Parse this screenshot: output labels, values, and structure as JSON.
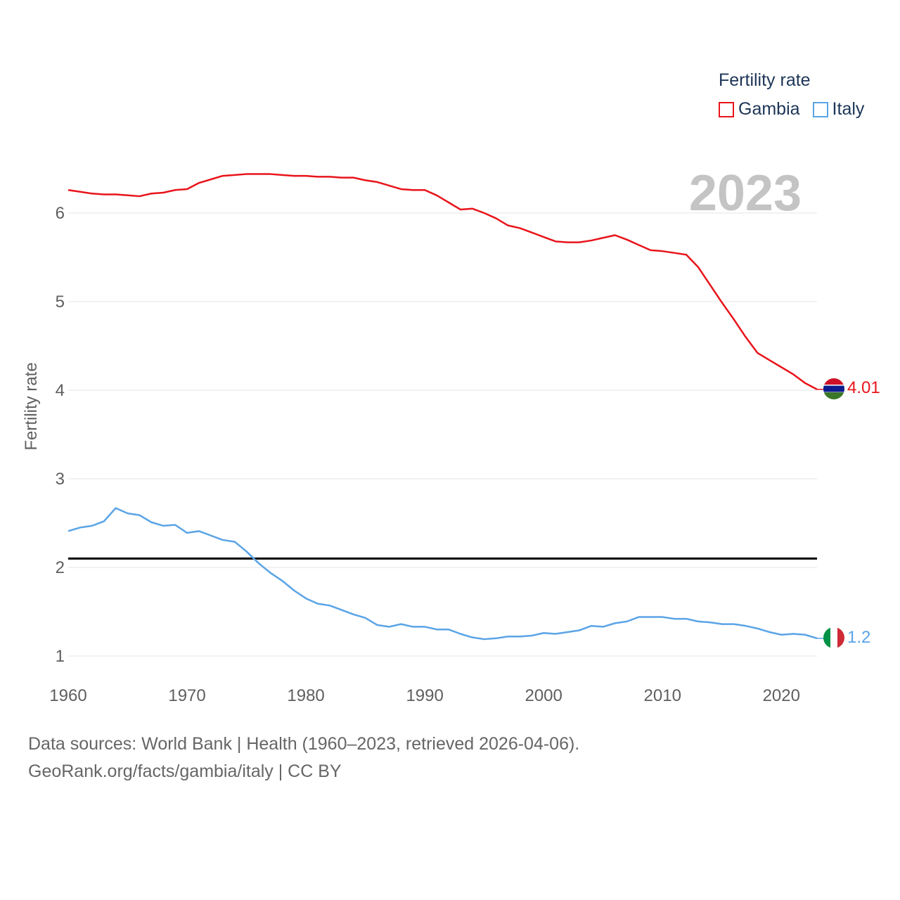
{
  "legend": {
    "title": "Fertility rate",
    "items": [
      {
        "label": "Gambia",
        "color": "#e8141b"
      },
      {
        "label": "Italy",
        "color": "#5aa4e6"
      }
    ]
  },
  "year_label": "2023",
  "footer": {
    "line1": "Data sources: World Bank | Health (1960–2023, retrieved 2026-04-06).",
    "line2": "GeoRank.org/facts/gambia/italy | CC BY"
  },
  "chart_data": {
    "type": "line",
    "title": "",
    "xlabel": "",
    "ylabel": "Fertility rate",
    "xlim": [
      1960,
      2023
    ],
    "ylim": [
      1,
      6
    ],
    "x_ticks": [
      1960,
      1970,
      1980,
      1990,
      2000,
      2010,
      2020
    ],
    "y_ticks": [
      1,
      2,
      3,
      4,
      5,
      6
    ],
    "reference_line": {
      "y": 2.1,
      "color": "#000000"
    },
    "x": [
      1960,
      1961,
      1962,
      1963,
      1964,
      1965,
      1966,
      1967,
      1968,
      1969,
      1970,
      1971,
      1972,
      1973,
      1974,
      1975,
      1976,
      1977,
      1978,
      1979,
      1980,
      1981,
      1982,
      1983,
      1984,
      1985,
      1986,
      1987,
      1988,
      1989,
      1990,
      1991,
      1992,
      1993,
      1994,
      1995,
      1996,
      1997,
      1998,
      1999,
      2000,
      2001,
      2002,
      2003,
      2004,
      2005,
      2006,
      2007,
      2008,
      2009,
      2010,
      2011,
      2012,
      2013,
      2014,
      2015,
      2016,
      2017,
      2018,
      2019,
      2020,
      2021,
      2022,
      2023
    ],
    "series": [
      {
        "name": "Gambia",
        "color": "#e8141b",
        "end_label": "4.01",
        "values": [
          6.26,
          6.24,
          6.22,
          6.21,
          6.21,
          6.2,
          6.19,
          6.22,
          6.23,
          6.26,
          6.27,
          6.34,
          6.38,
          6.42,
          6.43,
          6.44,
          6.44,
          6.44,
          6.43,
          6.42,
          6.42,
          6.41,
          6.41,
          6.4,
          6.4,
          6.37,
          6.35,
          6.31,
          6.27,
          6.26,
          6.26,
          6.2,
          6.12,
          6.04,
          6.05,
          6.0,
          5.94,
          5.86,
          5.83,
          5.78,
          5.73,
          5.68,
          5.67,
          5.67,
          5.69,
          5.72,
          5.75,
          5.7,
          5.64,
          5.58,
          5.57,
          5.55,
          5.53,
          5.39,
          5.19,
          4.99,
          4.8,
          4.6,
          4.42,
          4.34,
          4.26,
          4.18,
          4.08,
          4.01
        ]
      },
      {
        "name": "Italy",
        "color": "#5aa4e6",
        "end_label": "1.2",
        "values": [
          2.41,
          2.45,
          2.47,
          2.52,
          2.67,
          2.61,
          2.59,
          2.51,
          2.47,
          2.48,
          2.39,
          2.41,
          2.36,
          2.31,
          2.29,
          2.18,
          2.05,
          1.94,
          1.85,
          1.74,
          1.65,
          1.59,
          1.57,
          1.52,
          1.47,
          1.43,
          1.35,
          1.33,
          1.36,
          1.33,
          1.33,
          1.3,
          1.3,
          1.25,
          1.21,
          1.19,
          1.2,
          1.22,
          1.22,
          1.23,
          1.26,
          1.25,
          1.27,
          1.29,
          1.34,
          1.33,
          1.37,
          1.39,
          1.44,
          1.44,
          1.44,
          1.42,
          1.42,
          1.39,
          1.38,
          1.36,
          1.36,
          1.34,
          1.31,
          1.27,
          1.24,
          1.25,
          1.24,
          1.2
        ]
      }
    ]
  }
}
